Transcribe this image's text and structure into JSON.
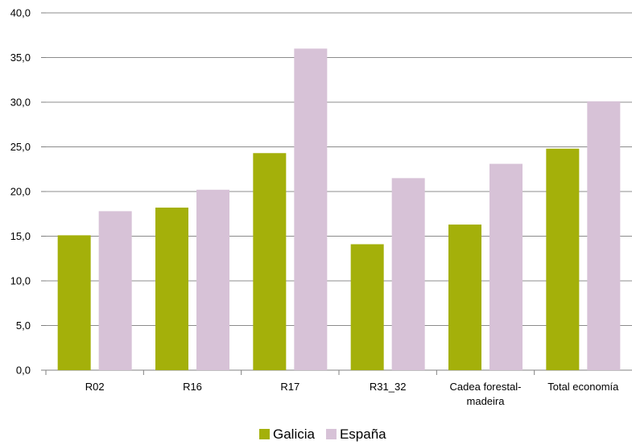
{
  "chart_data": {
    "type": "bar",
    "title": "",
    "xlabel": "",
    "ylabel": "",
    "ylim": [
      0,
      40
    ],
    "y_ticks": [
      "0,0",
      "5,0",
      "10,0",
      "15,0",
      "20,0",
      "25,0",
      "30,0",
      "35,0",
      "40,0"
    ],
    "grid": true,
    "legend_position": "bottom",
    "categories": [
      [
        "R02"
      ],
      [
        "R16"
      ],
      [
        "R17"
      ],
      [
        "R31_32"
      ],
      [
        "Cadea forestal-",
        "madeira"
      ],
      [
        "Total economía"
      ]
    ],
    "series": [
      {
        "name": "Galicia",
        "color": "#a4b00a",
        "values": [
          15.1,
          18.2,
          24.3,
          14.1,
          16.3,
          24.8
        ]
      },
      {
        "name": "España",
        "color": "#d7c2d7",
        "values": [
          17.8,
          20.2,
          36.0,
          21.5,
          23.1,
          30.1
        ]
      }
    ]
  }
}
